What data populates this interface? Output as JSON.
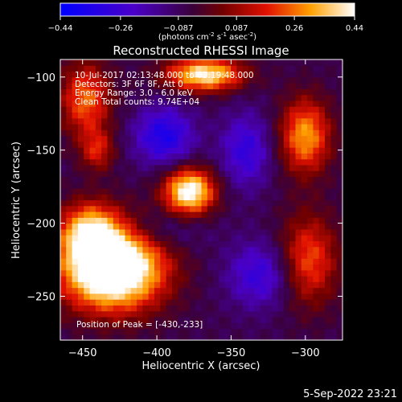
{
  "chart_data": {
    "type": "heatmap",
    "title": "Reconstructed RHESSI Image",
    "xlabel": "Heliocentric X (arcsec)",
    "ylabel": "Heliocentric Y (arcsec)",
    "xlim": [
      -465,
      -275
    ],
    "ylim": [
      -280,
      -88
    ],
    "x_ticks": [
      -450,
      -400,
      -350,
      -300
    ],
    "y_ticks": [
      -250,
      -200,
      -150,
      -100
    ],
    "colorbar": {
      "range": [
        -0.44,
        0.44
      ],
      "ticks": [
        "-0.44",
        "-0.26",
        "-0.087",
        "0.087",
        "0.26",
        "0.44"
      ],
      "label_main": "(photons cm",
      "label_exp1": "-2",
      "label_mid": " s",
      "label_exp2": "-1",
      "label_end": " asec",
      "label_exp3": "-2",
      "label_close": ")"
    },
    "info_lines": [
      "10-Jul-2017 02:13:48.000 to 02:19:48.000",
      "Detectors: 3F 6F 8F, Att 0",
      "Energy Range: 3.0 - 6.0 keV",
      "Clean     Total counts: 9.74E+04"
    ],
    "peak_text": "Position of Peak = [-430,-233]",
    "peak": [
      -430,
      -233
    ],
    "sources": [
      {
        "x": -430,
        "y": -230,
        "sx": 24,
        "sy": 20,
        "amp": 0.75
      },
      {
        "x": -445,
        "y": -205,
        "sx": 14,
        "sy": 14,
        "amp": 0.35
      },
      {
        "x": -378,
        "y": -178,
        "sx": 12,
        "sy": 11,
        "amp": 0.55
      },
      {
        "x": -368,
        "y": -98,
        "sx": 18,
        "sy": 8,
        "amp": 0.5
      },
      {
        "x": -448,
        "y": -115,
        "sx": 12,
        "sy": 18,
        "amp": 0.32
      },
      {
        "x": -300,
        "y": -140,
        "sx": 12,
        "sy": 18,
        "amp": 0.38
      },
      {
        "x": -298,
        "y": -225,
        "sx": 14,
        "sy": 22,
        "amp": 0.3
      },
      {
        "x": -440,
        "y": -150,
        "sx": 8,
        "sy": 10,
        "amp": 0.22
      },
      {
        "x": -395,
        "y": -140,
        "sx": 14,
        "sy": 14,
        "amp": -0.28
      },
      {
        "x": -340,
        "y": -150,
        "sx": 12,
        "sy": 18,
        "amp": -0.22
      },
      {
        "x": -330,
        "y": -235,
        "sx": 16,
        "sy": 16,
        "amp": -0.22
      },
      {
        "x": -400,
        "y": -205,
        "sx": 22,
        "sy": 10,
        "amp": -0.12
      }
    ],
    "background": -0.07
  },
  "footer": {
    "timestamp": "5-Sep-2022 23:21"
  }
}
